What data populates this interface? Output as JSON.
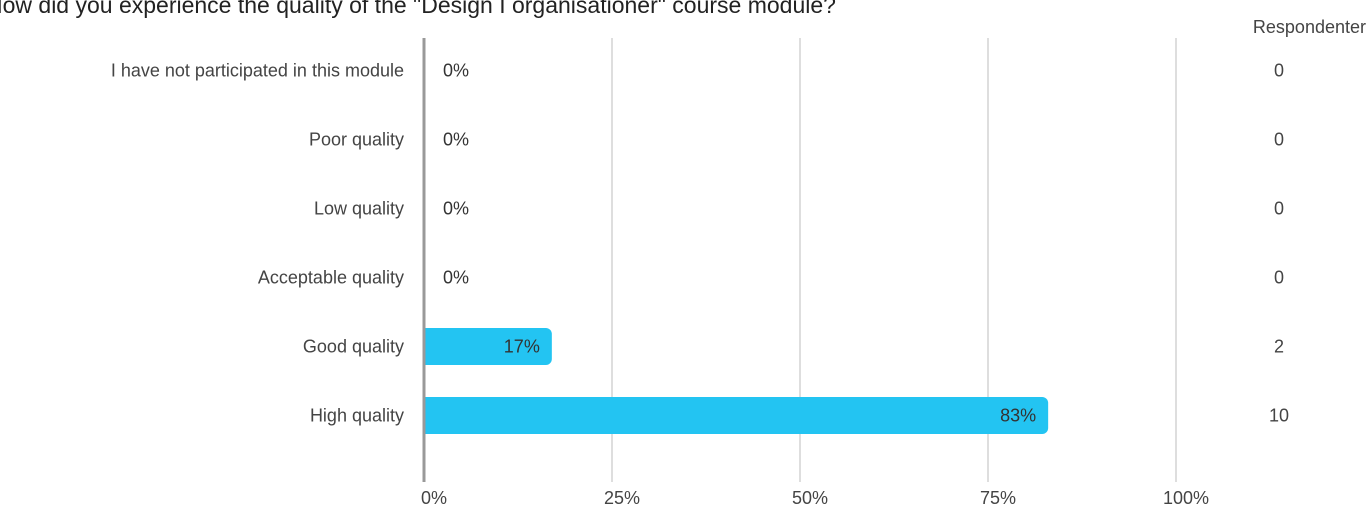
{
  "title": "How did you experience the quality of the \"Design I organisationer\" course module?",
  "respondents_header": "Respondenter",
  "colors": {
    "bar": "#23C4F2",
    "grid": "#BDBDBD",
    "axis": "#999999"
  },
  "chart_data": {
    "type": "bar",
    "orientation": "horizontal",
    "title": "How did you experience the quality of the \"Design I organisationer\" course module?",
    "categories": [
      "I have not participated in this module",
      "Poor quality",
      "Low quality",
      "Acceptable quality",
      "Good quality",
      "High quality"
    ],
    "values": [
      0,
      0,
      0,
      0,
      17,
      83
    ],
    "value_labels": [
      "0%",
      "0%",
      "0%",
      "0%",
      "17%",
      "83%"
    ],
    "counts": [
      "0",
      "0",
      "0",
      "0",
      "2",
      "10"
    ],
    "xlim": [
      0,
      100
    ],
    "xticks": [
      0,
      25,
      50,
      75,
      100
    ],
    "xtick_labels": [
      "0%",
      "25%",
      "50%",
      "75%",
      "100%"
    ],
    "grid": true
  }
}
